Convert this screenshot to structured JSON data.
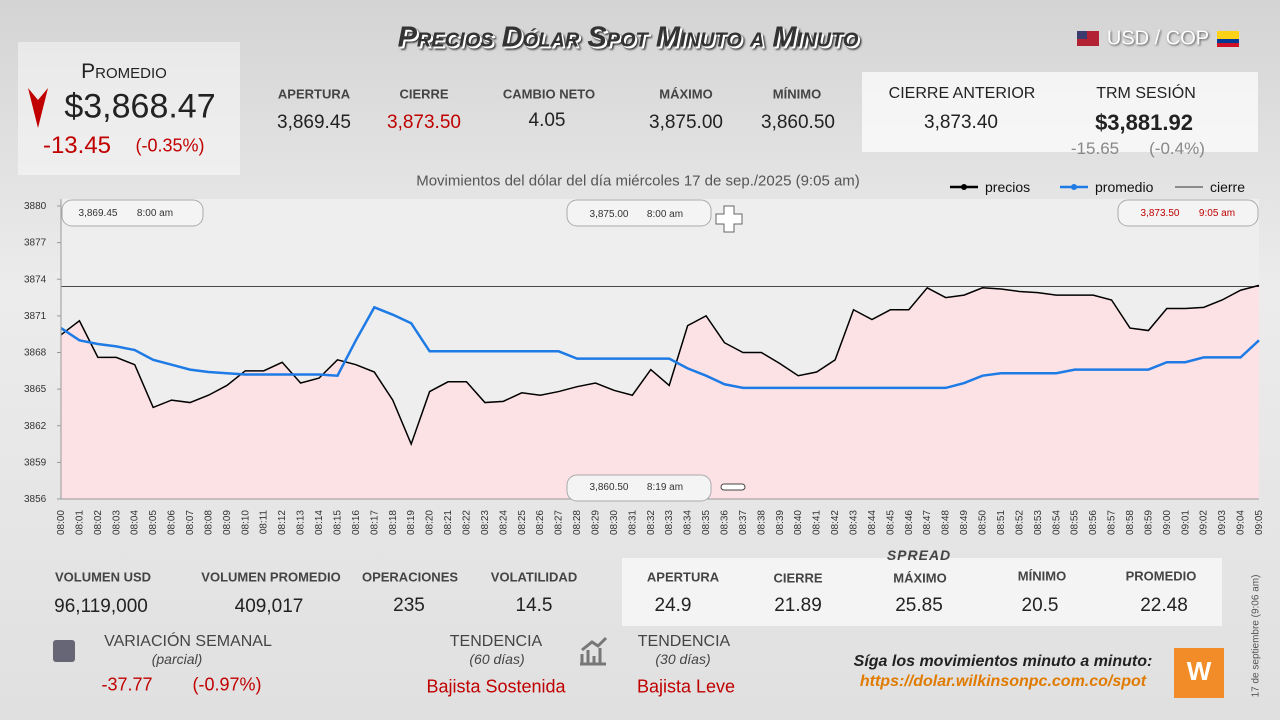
{
  "header": {
    "title": "Precios Dólar Spot Minuto a Minuto",
    "pair": "USD / COP"
  },
  "promedio": {
    "label": "Promedio",
    "value": "$3,868.47",
    "change": "-13.45",
    "change_pct": "(-0.35%)"
  },
  "stats": [
    {
      "label": "APERTURA",
      "value": "3,869.45"
    },
    {
      "label": "CIERRE",
      "value": "3,873.50"
    },
    {
      "label": "CAMBIO NETO",
      "value": "4.05"
    },
    {
      "label": "MÁXIMO",
      "value": "3,875.00"
    },
    {
      "label": "MÍNIMO",
      "value": "3,860.50"
    }
  ],
  "cierre_anterior": {
    "label": "CIERRE ANTERIOR",
    "value": "3,873.40"
  },
  "trm": {
    "label": "TRM SESIÓN",
    "value": "$3,881.92",
    "change": "-15.65",
    "change_pct": "(-0.4%)"
  },
  "chart_data": {
    "type": "line",
    "title": "Movimientos del dólar del día miércoles 17 de sep./2025 (9:05 am)",
    "categories": [
      "08:00",
      "08:01",
      "08:02",
      "08:03",
      "08:04",
      "08:05",
      "08:06",
      "08:07",
      "08:08",
      "08:09",
      "08:10",
      "08:11",
      "08:12",
      "08:13",
      "08:14",
      "08:15",
      "08:16",
      "08:17",
      "08:18",
      "08:19",
      "08:20",
      "08:21",
      "08:22",
      "08:23",
      "08:24",
      "08:25",
      "08:26",
      "08:27",
      "08:28",
      "08:29",
      "08:30",
      "08:31",
      "08:32",
      "08:33",
      "08:34",
      "08:35",
      "08:36",
      "08:37",
      "08:38",
      "08:39",
      "08:40",
      "08:41",
      "08:42",
      "08:43",
      "08:44",
      "08:45",
      "08:46",
      "08:47",
      "08:48",
      "08:49",
      "08:50",
      "08:51",
      "08:52",
      "08:53",
      "08:54",
      "08:55",
      "08:56",
      "08:57",
      "08:58",
      "08:59",
      "09:00",
      "09:01",
      "09:02",
      "09:03",
      "09:04",
      "09:05"
    ],
    "series": [
      {
        "name": "precios",
        "color": "#000000",
        "values": [
          3869.45,
          3870.6,
          3867.6,
          3867.6,
          3867,
          3863.5,
          3864.1,
          3863.9,
          3864.5,
          3865.3,
          3866.5,
          3866.5,
          3867.2,
          3865.5,
          3865.9,
          3867.4,
          3867,
          3866.4,
          3864.1,
          3860.5,
          3864.8,
          3865.6,
          3865.6,
          3863.9,
          3864,
          3864.7,
          3864.5,
          3864.8,
          3865.2,
          3865.5,
          3864.9,
          3864.5,
          3866.6,
          3865.3,
          3870.2,
          3871,
          3868.8,
          3868,
          3868,
          3867.1,
          3866.1,
          3866.4,
          3867.4,
          3871.5,
          3870.7,
          3871.5,
          3871.5,
          3873.3,
          3872.5,
          3872.7,
          3873.3,
          3873.2,
          3873,
          3872.9,
          3872.7,
          3872.7,
          3872.7,
          3872.3,
          3870,
          3869.8,
          3871.6,
          3871.6,
          3871.7,
          3872.3,
          3873.1,
          3873.5
        ]
      },
      {
        "name": "promedio",
        "color": "#1e7be6",
        "values": [
          3870,
          3869,
          3868.7,
          3868.5,
          3868.2,
          3867.4,
          3867,
          3866.6,
          3866.4,
          3866.3,
          3866.2,
          3866.2,
          3866.2,
          3866.2,
          3866.2,
          3866.1,
          3869,
          3871.7,
          3871.1,
          3870.4,
          3868.1,
          3868.1,
          3868.1,
          3868.1,
          3868.1,
          3868.1,
          3868.1,
          3868.1,
          3867.5,
          3867.5,
          3867.5,
          3867.5,
          3867.5,
          3867.5,
          3866.7,
          3866.1,
          3865.4,
          3865.1,
          3865.1,
          3865.1,
          3865.1,
          3865.1,
          3865.1,
          3865.1,
          3865.1,
          3865.1,
          3865.1,
          3865.1,
          3865.1,
          3865.5,
          3866.1,
          3866.3,
          3866.3,
          3866.3,
          3866.3,
          3866.6,
          3866.6,
          3866.6,
          3866.6,
          3866.6,
          3867.2,
          3867.2,
          3867.6,
          3867.6,
          3867.6,
          3869
        ]
      },
      {
        "name": "cierre",
        "color": "#333333",
        "values": [
          3873.4,
          3873.4,
          3873.4,
          3873.4,
          3873.4,
          3873.4,
          3873.4,
          3873.4,
          3873.4,
          3873.4,
          3873.4,
          3873.4,
          3873.4,
          3873.4,
          3873.4,
          3873.4,
          3873.4,
          3873.4,
          3873.4,
          3873.4,
          3873.4,
          3873.4,
          3873.4,
          3873.4,
          3873.4,
          3873.4,
          3873.4,
          3873.4,
          3873.4,
          3873.4,
          3873.4,
          3873.4,
          3873.4,
          3873.4,
          3873.4,
          3873.4,
          3873.4,
          3873.4,
          3873.4,
          3873.4,
          3873.4,
          3873.4,
          3873.4,
          3873.4,
          3873.4,
          3873.4,
          3873.4,
          3873.4,
          3873.4,
          3873.4,
          3873.4,
          3873.4,
          3873.4,
          3873.4,
          3873.4,
          3873.4,
          3873.4,
          3873.4,
          3873.4,
          3873.4,
          3873.4,
          3873.4,
          3873.4,
          3873.4,
          3873.4,
          3873.4
        ]
      }
    ],
    "ylim": [
      3856,
      3880
    ],
    "yticks": [
      3856,
      3859,
      3862,
      3865,
      3868,
      3871,
      3874,
      3877,
      3880
    ],
    "grid": false,
    "legend": "top-right",
    "annotations": [
      {
        "value": "3,869.45",
        "time": "8:00 am"
      },
      {
        "value": "3,875.00",
        "time": "8:00 am"
      },
      {
        "value": "3,873.50",
        "time": "9:05 am"
      },
      {
        "value": "3,860.50",
        "time": "8:19 am"
      }
    ]
  },
  "volume": [
    {
      "label": "VOLUMEN USD",
      "value": "96,119,000"
    },
    {
      "label": "VOLUMEN PROMEDIO",
      "value": "409,017"
    },
    {
      "label": "OPERACIONES",
      "value": "235"
    },
    {
      "label": "VOLATILIDAD",
      "value": "14.5"
    }
  ],
  "spread": {
    "title": "SPREAD",
    "items": [
      {
        "label": "APERTURA",
        "value": "24.9"
      },
      {
        "label": "CIERRE",
        "value": "21.89"
      },
      {
        "label": "MÁXIMO",
        "value": "25.85"
      },
      {
        "label": "MÍNIMO",
        "value": "20.5"
      },
      {
        "label": "PROMEDIO",
        "value": "22.48"
      }
    ]
  },
  "variacion": {
    "label": "VARIACIÓN SEMANAL",
    "sub": "(parcial)",
    "value": "-37.77",
    "pct": "(-0.97%)"
  },
  "tendencias": [
    {
      "label": "TENDENCIA",
      "sub": "(60 días)",
      "value": "Bajista Sostenida"
    },
    {
      "label": "TENDENCIA",
      "sub": "(30 días)",
      "value": "Bajista Leve"
    }
  ],
  "footer": {
    "text": "Síga los movimientos minuto a minuto:",
    "url": "https://dolar.wilkinsonpc.com.co/spot",
    "date": "17 de septiembre (9:06 am)"
  }
}
